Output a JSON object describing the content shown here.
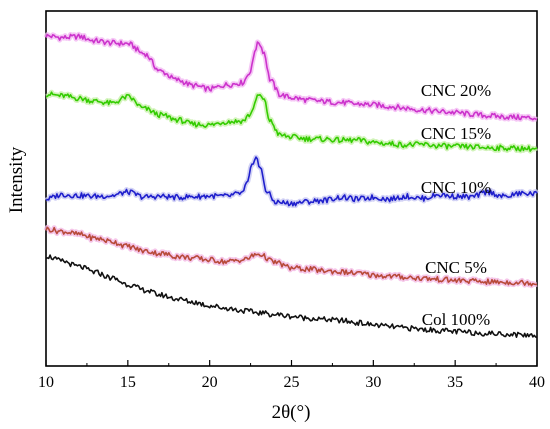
{
  "chart_data": {
    "type": "line",
    "xlabel": "2θ(°)",
    "ylabel": "Intensity",
    "xlim": [
      10,
      40
    ],
    "xticks": [
      10,
      15,
      20,
      25,
      30,
      35,
      40
    ],
    "y_ticks_shown": false,
    "grid": false,
    "legend": "none",
    "series": [
      {
        "name": "CNC 20%",
        "color": "#cc33cc",
        "glow": "#f2b8f2",
        "x": [
          10,
          11,
          12,
          13,
          14,
          15,
          16,
          17,
          18,
          19,
          20,
          21,
          22,
          22.5,
          22.8,
          23,
          23.3,
          23.7,
          24.3,
          25,
          26,
          27,
          28,
          29,
          30,
          31,
          32,
          33,
          34,
          35,
          36,
          37,
          38,
          39,
          40
        ],
        "y": [
          93.0,
          92.5,
          92.8,
          91.6,
          91.0,
          90.8,
          88.0,
          83.0,
          80.6,
          79.0,
          78.0,
          79.2,
          79.8,
          83.0,
          89.5,
          91.2,
          88.5,
          80.6,
          76.4,
          75.6,
          74.9,
          74.5,
          74.2,
          73.8,
          73.6,
          73.1,
          72.6,
          72.1,
          71.7,
          71.4,
          70.9,
          70.5,
          70.2,
          70.0,
          69.8
        ]
      },
      {
        "name": "CNC 15%",
        "color": "#33cc00",
        "glow": "#c6f0a8",
        "x": [
          10,
          11,
          12,
          13,
          14,
          15,
          16,
          17,
          18,
          19,
          20,
          21,
          22,
          22.5,
          22.8,
          23,
          23.3,
          23.7,
          24.3,
          25,
          26,
          27,
          28,
          29,
          30,
          31,
          32,
          33,
          34,
          35,
          36,
          37,
          38,
          39,
          40
        ],
        "y": [
          76.6,
          76.1,
          75.4,
          74.6,
          74.0,
          75.8,
          72.5,
          70.7,
          69.4,
          68.1,
          67.9,
          68.8,
          69.0,
          70.9,
          74.5,
          76.4,
          75.0,
          68.9,
          65.0,
          64.5,
          64.0,
          63.9,
          63.6,
          63.6,
          63.0,
          62.6,
          62.3,
          62.4,
          62.0,
          61.8,
          61.7,
          61.5,
          61.4,
          61.3,
          61.2
        ]
      },
      {
        "name": "CNC 10%",
        "color": "#1f1fcc",
        "glow": "#c7c7f2",
        "x": [
          10,
          11,
          12,
          13,
          14,
          15,
          16,
          17,
          18,
          19,
          20,
          21,
          22,
          22.3,
          22.6,
          22.8,
          23.1,
          23.5,
          24,
          25,
          26,
          27,
          28,
          29,
          30,
          31,
          32,
          33,
          34,
          35,
          36,
          37,
          38,
          39,
          40
        ],
        "y": [
          47.0,
          48.3,
          48.0,
          47.8,
          48.0,
          49.0,
          47.6,
          47.8,
          47.5,
          47.7,
          47.9,
          47.8,
          48.7,
          51.5,
          56.5,
          59.2,
          55.5,
          49.0,
          46.2,
          45.8,
          46.3,
          46.7,
          47.5,
          47.0,
          47.5,
          47.0,
          47.8,
          47.2,
          48.2,
          47.8,
          47.6,
          49.0,
          47.7,
          48.6,
          48.5
        ]
      },
      {
        "name": "CNC 5%",
        "color": "#b84a3a",
        "glow": "#f2b8e4",
        "x": [
          10,
          11,
          12,
          13,
          14,
          15,
          16,
          17,
          18,
          19,
          20,
          21,
          22,
          23,
          24,
          25,
          26,
          27,
          28,
          29,
          30,
          31,
          32,
          33,
          34,
          35,
          36,
          37,
          38,
          39,
          40
        ],
        "y": [
          38.6,
          37.9,
          37.1,
          36.0,
          35.1,
          33.7,
          32.4,
          31.7,
          30.9,
          30.4,
          29.9,
          29.4,
          29.9,
          31.5,
          29.2,
          27.6,
          27.3,
          26.8,
          26.5,
          26.1,
          25.6,
          25.3,
          25.0,
          24.7,
          24.4,
          24.1,
          23.9,
          23.7,
          23.6,
          23.5,
          23.3
        ]
      },
      {
        "name": "Col 100%",
        "color": "#111111",
        "glow": "",
        "x": [
          10,
          11,
          12,
          13,
          14,
          15,
          16,
          17,
          18,
          19,
          20,
          21,
          22,
          23,
          24,
          25,
          26,
          27,
          28,
          29,
          30,
          31,
          32,
          33,
          34,
          35,
          36,
          37,
          38,
          39,
          40
        ],
        "y": [
          31.0,
          29.5,
          28.0,
          26.4,
          24.8,
          23.0,
          21.4,
          20.0,
          18.9,
          18.0,
          17.0,
          16.3,
          15.6,
          15.0,
          14.5,
          14.0,
          13.5,
          13.1,
          12.8,
          12.2,
          11.6,
          11.1,
          10.7,
          10.3,
          10.0,
          9.7,
          9.4,
          9.2,
          9.0,
          8.8,
          8.6
        ]
      }
    ]
  }
}
